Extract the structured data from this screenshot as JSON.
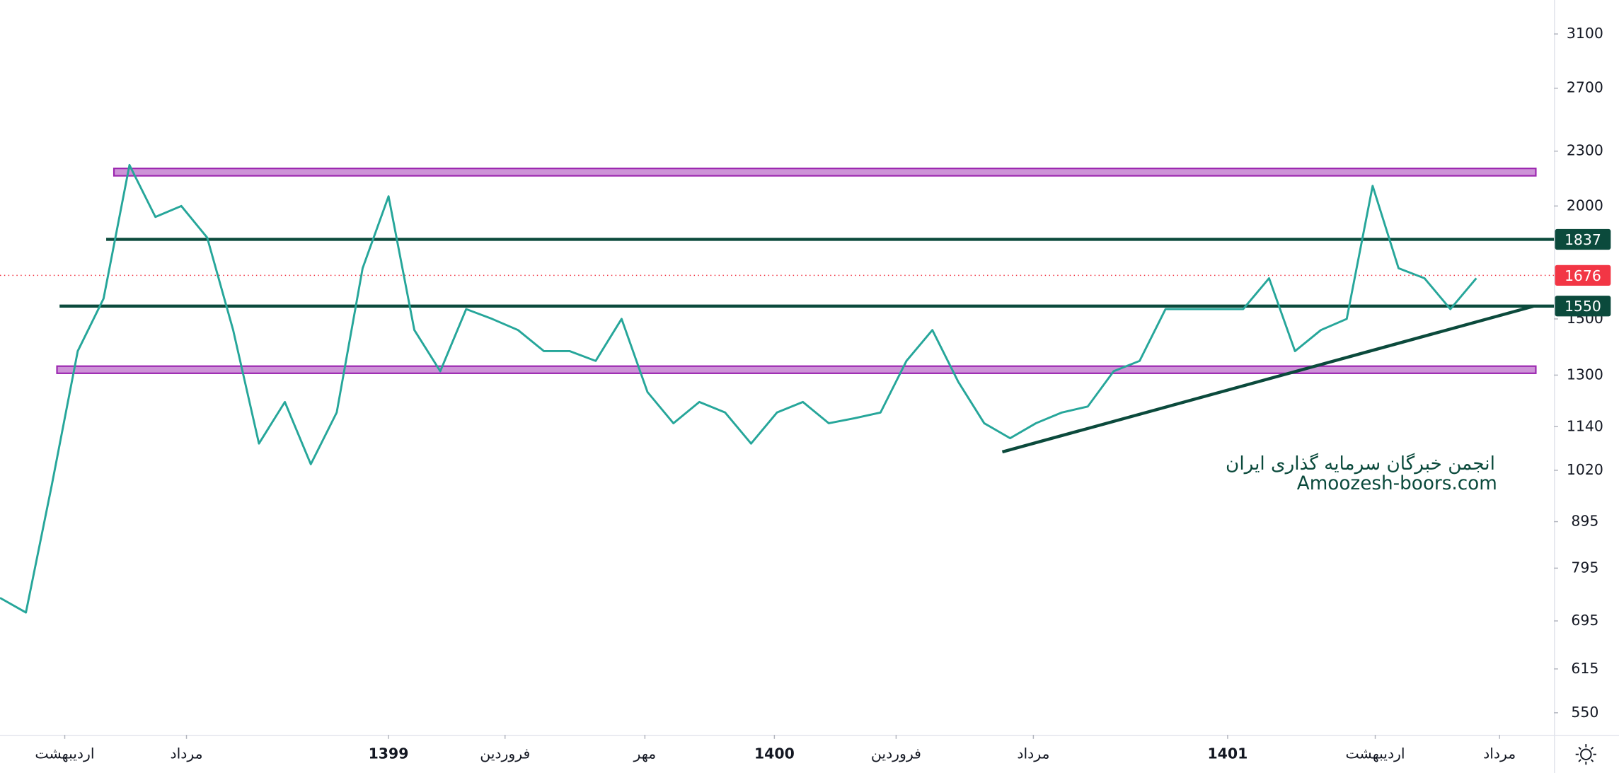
{
  "chart_data": {
    "type": "line",
    "color": "#26a69a",
    "log_scale": true,
    "x": [
      0,
      1,
      2,
      3,
      4,
      5,
      6,
      7,
      8,
      9,
      10,
      11,
      12,
      13,
      14,
      15,
      16,
      17,
      18,
      19,
      20,
      21,
      22,
      23,
      24,
      25,
      26,
      27,
      28,
      29,
      30,
      31,
      32,
      33,
      34,
      35,
      36,
      37,
      38,
      39,
      40,
      41,
      42,
      43,
      44,
      45,
      46,
      47,
      48,
      49,
      50,
      51,
      52,
      53,
      54,
      55,
      56,
      57
    ],
    "values": [
      737,
      710,
      983,
      1382,
      1580,
      2220,
      1945,
      2000,
      1845,
      1458,
      1092,
      1214,
      1036,
      1182,
      1707,
      2050,
      1458,
      1313,
      1538,
      1500,
      1458,
      1382,
      1382,
      1348,
      1500,
      1245,
      1150,
      1214,
      1182,
      1092,
      1182,
      1214,
      1150,
      1165,
      1182,
      1348,
      1458,
      1278,
      1150,
      1107,
      1150,
      1182,
      1200,
      1313,
      1348,
      1538,
      1538,
      1538,
      1538,
      1664,
      1382,
      1458,
      1500,
      2105,
      1707,
      1664,
      1538,
      1664
    ],
    "xlim": [
      0,
      60
    ],
    "xticks": [
      {
        "value": 2.5,
        "label": "اردیبهشت"
      },
      {
        "value": 7.2,
        "label": "مرداد"
      },
      {
        "value": 15.0,
        "label": "1399"
      },
      {
        "value": 19.5,
        "label": "فروردین"
      },
      {
        "value": 24.9,
        "label": "مهر"
      },
      {
        "value": 29.9,
        "label": "1400"
      },
      {
        "value": 34.6,
        "label": "فروردین"
      },
      {
        "value": 39.9,
        "label": "مرداد"
      },
      {
        "value": 47.4,
        "label": "1401"
      },
      {
        "value": 53.1,
        "label": "اردیبهشت"
      },
      {
        "value": 57.9,
        "label": "مرداد"
      }
    ],
    "ylim": [
      520,
      3380
    ],
    "yticks": [
      3100,
      2700,
      2300,
      2000,
      1500,
      1300,
      1140,
      1020,
      895,
      795,
      695,
      615,
      550
    ],
    "zones": [
      {
        "x": [
          4.4,
          59.3
        ],
        "from": 2160,
        "to": 2201,
        "color": "#9c27b0"
      },
      {
        "x": [
          2.2,
          59.3
        ],
        "from": 1306,
        "to": 1330,
        "color": "#9c27b0"
      }
    ],
    "levels": [
      {
        "x": 4.1,
        "value": 1837,
        "color": "#0b4a3c"
      },
      {
        "x": 2.3,
        "value": 1550,
        "color": "#0b4a3c"
      }
    ],
    "last_price": {
      "value": 1676,
      "color": "#f23645"
    },
    "trendline": {
      "x": [
        38.7,
        59.2
      ],
      "values": [
        1069,
        1549
      ],
      "color": "#0b4a3c"
    },
    "watermark": [
      "انجمن خبرگان سرمایه گذاری ایران",
      "Amoozesh-boors.com"
    ]
  }
}
